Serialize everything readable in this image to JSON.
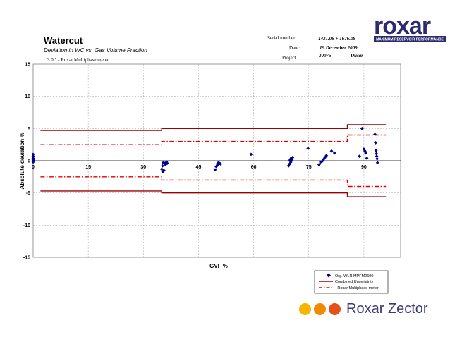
{
  "header": {
    "title": "Watercut",
    "subtitle": "Deviation in WC vs. Gas Volume Fraction",
    "meter_label": "3.0 \" - Roxar Multiphase meter",
    "serial_label": "Serial number:",
    "serial_value": "1431.06 + 1676.08",
    "date_label": "Date:",
    "date_value": "19.December 2009",
    "project_label": "Project :",
    "project_value": "30075",
    "project_extra": "Dusar"
  },
  "logo": {
    "text": "roxar",
    "tagline": "MAXIMUM RESERVOIR PERFORMANCE",
    "color": "#2b2b6e"
  },
  "brand": {
    "text": "Roxar Zector",
    "dot_colors": [
      "#f7b500",
      "#f08a00",
      "#e2511a"
    ]
  },
  "chart_data": {
    "type": "scatter",
    "title": "",
    "xlabel": "GVF %",
    "ylabel": "Absolute deviation %",
    "xlim": [
      0,
      100
    ],
    "ylim": [
      -15,
      15
    ],
    "x_ticks": [
      0,
      15,
      30,
      45,
      60,
      75,
      90
    ],
    "y_ticks": [
      15,
      10,
      5,
      0,
      -5,
      -10,
      -15
    ],
    "grid": true,
    "legend_position": "bottom-right",
    "series": [
      {
        "name": "Org. WLR MPFM2600",
        "type": "scatter",
        "color": "#00008b",
        "points": [
          [
            0,
            0.1
          ],
          [
            0,
            0.4
          ],
          [
            0,
            0.7
          ],
          [
            0,
            1.0
          ],
          [
            0,
            -0.2
          ],
          [
            0,
            0.2
          ],
          [
            35,
            -1.3
          ],
          [
            35.3,
            -1.7
          ],
          [
            35.6,
            -1.5
          ],
          [
            35.4,
            -0.3
          ],
          [
            35.8,
            -0.4
          ],
          [
            36,
            -0.6
          ],
          [
            36.3,
            -0.2
          ],
          [
            36.5,
            -0.4
          ],
          [
            35.2,
            -0.8
          ],
          [
            49.5,
            -1.4
          ],
          [
            49.8,
            -0.9
          ],
          [
            50.1,
            -0.5
          ],
          [
            50.4,
            -0.3
          ],
          [
            50.7,
            -0.4
          ],
          [
            51,
            -0.5
          ],
          [
            50.2,
            -0.7
          ],
          [
            59.3,
            1.0
          ],
          [
            69.5,
            -0.8
          ],
          [
            69.8,
            -0.5
          ],
          [
            70.1,
            -0.2
          ],
          [
            70.4,
            0.2
          ],
          [
            70.2,
            0.4
          ],
          [
            70.6,
            0.5
          ],
          [
            69.9,
            0.1
          ],
          [
            74.8,
            1.9
          ],
          [
            77.8,
            -0.6
          ],
          [
            78.2,
            -0.2
          ],
          [
            78.6,
            -0.1
          ],
          [
            79,
            0.2
          ],
          [
            79.4,
            0.5
          ],
          [
            79.8,
            0.8
          ],
          [
            81.2,
            1.5
          ],
          [
            82,
            1.2
          ],
          [
            88.8,
            0.7
          ],
          [
            89.5,
            5.0
          ],
          [
            90,
            1.8
          ],
          [
            90.3,
            1.5
          ],
          [
            90.5,
            1.2
          ],
          [
            90.8,
            0.4
          ],
          [
            93,
            4.1
          ],
          [
            93.2,
            2.8
          ],
          [
            93.3,
            1.6
          ],
          [
            93.4,
            1.1
          ],
          [
            93.5,
            0.7
          ],
          [
            93.6,
            0.3
          ],
          [
            93.7,
            -0.3
          ]
        ]
      },
      {
        "name": "Combined Uncertainty",
        "type": "step-line",
        "color": "#990000",
        "upper": [
          [
            2,
            4.7
          ],
          [
            35,
            4.7
          ],
          [
            35,
            5.0
          ],
          [
            85.5,
            5.0
          ],
          [
            85.5,
            5.6
          ],
          [
            96,
            5.6
          ]
        ],
        "lower": [
          [
            2,
            -4.7
          ],
          [
            35,
            -4.7
          ],
          [
            35,
            -5.0
          ],
          [
            85.5,
            -5.0
          ],
          [
            85.5,
            -5.6
          ],
          [
            96,
            -5.6
          ]
        ]
      },
      {
        "name": "- Roxar Multiphase meter",
        "type": "step-dashdot",
        "color": "#e00000",
        "upper": [
          [
            2,
            2.5
          ],
          [
            35,
            2.5
          ],
          [
            35,
            3.0
          ],
          [
            85.5,
            3.0
          ],
          [
            85.5,
            4.0
          ],
          [
            96,
            4.0
          ]
        ],
        "lower": [
          [
            2,
            -2.5
          ],
          [
            35,
            -2.5
          ],
          [
            35,
            -3.0
          ],
          [
            85.5,
            -3.0
          ],
          [
            85.5,
            -4.0
          ],
          [
            96,
            -4.0
          ]
        ]
      }
    ]
  }
}
